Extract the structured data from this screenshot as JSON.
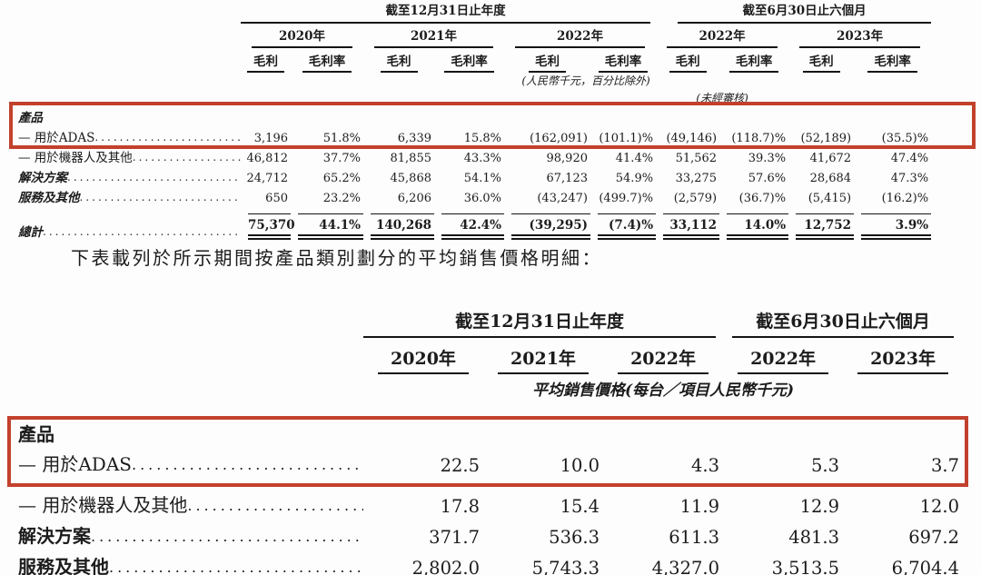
{
  "colors": {
    "highlight_red": "#c2412d",
    "text": "#1c1c1c"
  },
  "gross_profit_table": {
    "period_groups": [
      {
        "label": "截至12月31日止年度",
        "years": [
          "2020年",
          "2021年",
          "2022年"
        ]
      },
      {
        "label": "截至6月30日止六個月",
        "years": [
          "2022年",
          "2023年"
        ]
      }
    ],
    "sub_columns": [
      "毛利",
      "毛利率"
    ],
    "unit_note": "(人民幣千元，百分比除外)",
    "unaudited_note": "(未經審核)",
    "rows": [
      {
        "label": "產品",
        "style": "section",
        "leader": false,
        "values": [
          "",
          "",
          "",
          "",
          "",
          "",
          "",
          "",
          "",
          ""
        ]
      },
      {
        "label": "— 用於ADAS",
        "style": "sub",
        "leader": true,
        "values": [
          "3,196",
          "51.8%",
          "6,339",
          "15.8%",
          "(162,091)",
          "(101.1)%",
          "(49,146)",
          "(118.7)%",
          "(52,189)",
          "(35.5)%"
        ]
      },
      {
        "label": "— 用於機器人及其他",
        "style": "sub",
        "leader": true,
        "values": [
          "46,812",
          "37.7%",
          "81,855",
          "43.3%",
          "98,920",
          "41.4%",
          "51,562",
          "39.3%",
          "41,672",
          "47.4%"
        ]
      },
      {
        "label": "解決方案",
        "style": "sectionrow",
        "leader": true,
        "values": [
          "24,712",
          "65.2%",
          "45,868",
          "54.1%",
          "67,123",
          "54.9%",
          "33,275",
          "57.6%",
          "28,684",
          "47.3%"
        ]
      },
      {
        "label": "服務及其他",
        "style": "sectionrow",
        "leader": true,
        "values": [
          "650",
          "23.2%",
          "6,206",
          "36.0%",
          "(43,247)",
          "(499.7)%",
          "(2,579)",
          "(36.7)%",
          "(5,415)",
          "(16.2)%"
        ]
      },
      {
        "label": "總計",
        "style": "total",
        "leader": true,
        "values": [
          "75,370",
          "44.1%",
          "140,268",
          "42.4%",
          "(39,295)",
          "(7.4)%",
          "33,112",
          "14.0%",
          "12,752",
          "3.9%"
        ]
      }
    ]
  },
  "intro_text": "下表載列於所示期間按產品類別劃分的平均銷售價格明細：",
  "asp_table": {
    "period_groups": [
      {
        "label": "截至12月31日止年度",
        "years": [
          "2020年",
          "2021年",
          "2022年"
        ]
      },
      {
        "label": "截至6月30日止六個月",
        "years": [
          "2022年",
          "2023年"
        ]
      }
    ],
    "unit_note": "平均銷售價格(每台／項目人民幣千元)",
    "rows": [
      {
        "label": "產品",
        "style": "section",
        "leader": false,
        "values": [
          "",
          "",
          "",
          "",
          ""
        ]
      },
      {
        "label": "— 用於ADAS",
        "style": "sub",
        "leader": true,
        "values": [
          "22.5",
          "10.0",
          "4.3",
          "5.3",
          "3.7"
        ]
      },
      {
        "label": "— 用於機器人及其他",
        "style": "sub",
        "leader": true,
        "values": [
          "17.8",
          "15.4",
          "11.9",
          "12.9",
          "12.0"
        ]
      },
      {
        "label": "解決方案",
        "style": "sectionrow",
        "leader": true,
        "values": [
          "371.7",
          "536.3",
          "611.3",
          "481.3",
          "697.2"
        ]
      },
      {
        "label": "服務及其他",
        "style": "sectionrow",
        "leader": true,
        "values": [
          "2,802.0",
          "5,743.3",
          "4,327.0",
          "3,513.5",
          "6,704.4"
        ]
      }
    ]
  }
}
